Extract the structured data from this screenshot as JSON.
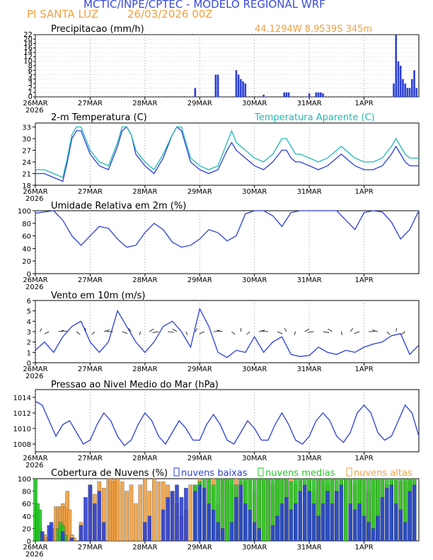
{
  "header": {
    "title": "MCTIC/INPE/CPTEC - MODELO REGIONAL WRF",
    "station": "PI SANTA LUZ",
    "run": "26/03/2026 00Z",
    "coords": "44.1294W 8.9539S 345m"
  },
  "colors": {
    "blue": "#2b3fd6",
    "cyan": "#22b8b8",
    "orange": "#f0a040",
    "green": "#22c922",
    "title_blue": "#3a4bd8"
  },
  "x_axis": {
    "ticks": [
      "26MAR",
      "27MAR",
      "28MAR",
      "29MAR",
      "30MAR",
      "31MAR",
      "1APR"
    ],
    "year": "2026",
    "n_hours": 168
  },
  "chart_data": [
    {
      "id": "precip",
      "type": "bar",
      "title": "Precipitacao (mm/h)",
      "ylim": [
        0,
        22
      ],
      "yticks": [
        "0",
        "1",
        "2",
        "3",
        "4",
        "5",
        "6",
        "8",
        "10",
        "12",
        "14",
        "16",
        "18",
        "20",
        "22"
      ],
      "x_hours": [
        70,
        79,
        80,
        88,
        89,
        90,
        91,
        92,
        100,
        109,
        110,
        111,
        120,
        123,
        124,
        125,
        126,
        157,
        158,
        159,
        160,
        161,
        162,
        163,
        164,
        165,
        166,
        167
      ],
      "values": [
        2,
        5,
        5,
        6,
        5,
        4,
        3.5,
        3,
        0.5,
        1,
        1,
        1,
        0.8,
        1,
        1,
        1,
        0.8,
        3,
        22,
        10,
        8,
        4,
        3,
        2,
        2,
        4,
        6,
        2
      ],
      "series_color": "blue"
    },
    {
      "id": "temp",
      "type": "line",
      "title": "2-m Temperatura (C)",
      "legend": "Temperatura Aparente (C)",
      "ylim": [
        18,
        34
      ],
      "yticks": [
        "18",
        "21",
        "24",
        "27",
        "30",
        "33"
      ],
      "series": [
        {
          "name": "2-m Temperatura (C)",
          "color": "blue",
          "x": [
            0,
            4,
            8,
            12,
            14,
            16,
            18,
            20,
            24,
            28,
            32,
            36,
            38,
            40,
            42,
            44,
            48,
            52,
            56,
            60,
            62,
            64,
            66,
            68,
            72,
            76,
            80,
            84,
            86,
            88,
            90,
            92,
            96,
            100,
            104,
            108,
            110,
            112,
            114,
            116,
            120,
            124,
            128,
            132,
            134,
            136,
            138,
            140,
            144,
            148,
            152,
            156,
            158,
            160,
            162,
            164,
            168
          ],
          "values": [
            21,
            21,
            20,
            19,
            24,
            30,
            32,
            32,
            26,
            23,
            22,
            28,
            32,
            33,
            31,
            26,
            23,
            21,
            25,
            31,
            33,
            32,
            28,
            24,
            22,
            21,
            22,
            27,
            29,
            27,
            26,
            25,
            23,
            22,
            24,
            27,
            27,
            25,
            24,
            24,
            23,
            22,
            23,
            25,
            26,
            25,
            24,
            23,
            22,
            22,
            23,
            26,
            28,
            26,
            24,
            23,
            23
          ]
        },
        {
          "name": "Temperatura Aparente (C)",
          "color": "cyan",
          "x": [
            0,
            4,
            8,
            12,
            14,
            16,
            18,
            20,
            24,
            28,
            32,
            36,
            38,
            40,
            42,
            44,
            48,
            52,
            56,
            60,
            62,
            64,
            66,
            68,
            72,
            76,
            80,
            84,
            86,
            88,
            90,
            92,
            96,
            100,
            104,
            108,
            110,
            112,
            114,
            116,
            120,
            124,
            128,
            132,
            134,
            136,
            138,
            140,
            144,
            148,
            152,
            156,
            158,
            160,
            162,
            164,
            168
          ],
          "values": [
            22,
            22,
            21,
            20,
            25,
            31,
            33,
            33,
            27,
            24,
            23,
            29,
            33,
            33,
            31,
            27,
            24,
            22,
            26,
            31,
            33,
            33,
            29,
            25,
            23,
            22,
            23,
            29,
            32,
            29,
            28,
            27,
            25,
            24,
            26,
            30,
            30,
            28,
            26,
            26,
            25,
            24,
            25,
            27,
            28,
            27,
            26,
            25,
            24,
            24,
            25,
            28,
            30,
            28,
            26,
            25,
            25
          ]
        }
      ]
    },
    {
      "id": "rh",
      "type": "line",
      "title": "Umidade Relativa em 2m (%)",
      "ylim": [
        0,
        100
      ],
      "yticks": [
        "0",
        "20",
        "40",
        "60",
        "80",
        "100"
      ],
      "series": [
        {
          "name": "Umidade Relativa em 2m (%)",
          "color": "blue",
          "x": [
            0,
            4,
            8,
            12,
            16,
            20,
            24,
            28,
            32,
            36,
            40,
            44,
            48,
            52,
            56,
            60,
            64,
            68,
            72,
            76,
            80,
            84,
            88,
            92,
            96,
            100,
            104,
            108,
            112,
            116,
            120,
            124,
            128,
            132,
            136,
            140,
            144,
            148,
            152,
            156,
            160,
            164,
            168
          ],
          "values": [
            96,
            98,
            100,
            85,
            60,
            45,
            60,
            75,
            72,
            55,
            42,
            45,
            65,
            80,
            70,
            50,
            42,
            45,
            55,
            70,
            65,
            52,
            60,
            95,
            100,
            100,
            92,
            75,
            97,
            100,
            100,
            100,
            100,
            100,
            85,
            70,
            97,
            100,
            98,
            82,
            55,
            70,
            100
          ]
        }
      ]
    },
    {
      "id": "wind",
      "type": "line",
      "title": "Vento em 10m (m/s)",
      "ylim": [
        0,
        6
      ],
      "yticks": [
        "0",
        "1",
        "2",
        "3",
        "4",
        "5",
        "6"
      ],
      "series": [
        {
          "name": "Vento em 10m (m/s)",
          "color": "blue",
          "x": [
            0,
            4,
            8,
            12,
            16,
            20,
            24,
            28,
            32,
            36,
            40,
            44,
            48,
            52,
            56,
            60,
            64,
            68,
            72,
            76,
            80,
            84,
            88,
            92,
            96,
            100,
            104,
            108,
            112,
            116,
            120,
            124,
            128,
            132,
            136,
            140,
            144,
            148,
            152,
            156,
            160,
            164,
            168
          ],
          "values": [
            1.2,
            2.0,
            1.0,
            2.5,
            3.5,
            4.0,
            2.0,
            1.0,
            2.0,
            5.0,
            3.5,
            2.0,
            1.0,
            2.0,
            3.5,
            4.0,
            3.0,
            1.5,
            5.2,
            3.5,
            1.0,
            0.5,
            1.2,
            1.0,
            2.5,
            1.0,
            2.0,
            2.5,
            0.8,
            0.6,
            0.7,
            1.5,
            1.0,
            0.8,
            1.2,
            1.0,
            1.5,
            1.8,
            2.0,
            2.6,
            2.8,
            0.8,
            1.7
          ]
        }
      ]
    },
    {
      "id": "pres",
      "type": "line",
      "title": "Pressao ao Nivel Medio do Mar (hPa)",
      "ylim": [
        1007,
        1015
      ],
      "yticks": [
        "1008",
        "1010",
        "1012",
        "1014"
      ],
      "series": [
        {
          "name": "Pressao ao Nivel Medio do Mar (hPa)",
          "color": "blue",
          "x": [
            0,
            3,
            6,
            9,
            12,
            15,
            18,
            21,
            24,
            27,
            30,
            33,
            36,
            39,
            42,
            45,
            48,
            51,
            54,
            57,
            60,
            63,
            66,
            69,
            72,
            75,
            78,
            81,
            84,
            87,
            90,
            93,
            96,
            99,
            102,
            105,
            108,
            111,
            114,
            117,
            120,
            123,
            126,
            129,
            132,
            135,
            138,
            141,
            144,
            147,
            150,
            153,
            156,
            159,
            162,
            165,
            168
          ],
          "values": [
            1013.5,
            1013,
            1011,
            1009,
            1010.5,
            1011,
            1009.5,
            1008,
            1008.5,
            1010.5,
            1012,
            1011,
            1009,
            1007.8,
            1008.5,
            1010.5,
            1012,
            1011,
            1009,
            1008,
            1009.5,
            1011,
            1010,
            1008.5,
            1008.5,
            1010.5,
            1011.8,
            1010.5,
            1008.5,
            1008,
            1009.5,
            1011,
            1010,
            1008.5,
            1008.5,
            1010.5,
            1012,
            1010.5,
            1008.5,
            1008,
            1009,
            1011,
            1012,
            1011,
            1009,
            1008.2,
            1009.5,
            1012,
            1013,
            1012,
            1009.5,
            1008.5,
            1009,
            1011,
            1013,
            1012,
            1009
          ]
        }
      ]
    },
    {
      "id": "cloud",
      "type": "bar",
      "title": "Cobertura de Nuvens (%)",
      "ylim": [
        0,
        100
      ],
      "yticks": [
        "0",
        "20",
        "40",
        "60",
        "80",
        "100"
      ],
      "legend": [
        "nuvens baixas",
        "nuvens medias",
        "nuvens altas"
      ],
      "series": [
        {
          "name": "nuvens altas",
          "color": "orange",
          "x": [
            2,
            3,
            4,
            5,
            8,
            9,
            10,
            11,
            12,
            13,
            14,
            15,
            16,
            17,
            20,
            24,
            26,
            28,
            30,
            32,
            33,
            34,
            35,
            36,
            38,
            40,
            42,
            44,
            46,
            48,
            50,
            52,
            54,
            56,
            58,
            60,
            62,
            64,
            66,
            68,
            70,
            72,
            74,
            76,
            78,
            80,
            82,
            84,
            86,
            88,
            90,
            92,
            94,
            96,
            98,
            100,
            102,
            104,
            106,
            108,
            110,
            112,
            114,
            116,
            118,
            120,
            122,
            124,
            126,
            128,
            130,
            132,
            134,
            136,
            138,
            140,
            142,
            144,
            146,
            148,
            150,
            152,
            154,
            156,
            158,
            160,
            162,
            164,
            166
          ],
          "values": [
            20,
            15,
            10,
            5,
            20,
            55,
            55,
            55,
            60,
            55,
            80,
            50,
            10,
            5,
            30,
            90,
            75,
            95,
            85,
            100,
            100,
            95,
            100,
            100,
            95,
            80,
            90,
            60,
            90,
            100,
            80,
            100,
            95,
            95,
            90,
            80,
            60,
            40,
            50,
            90,
            90,
            100,
            80,
            100,
            100,
            60,
            100,
            100,
            90,
            100,
            95,
            100,
            100,
            80,
            100,
            100,
            100,
            90,
            100,
            100,
            100,
            100,
            90,
            100,
            60,
            100,
            80,
            100,
            100,
            90,
            100,
            80,
            100,
            100,
            100,
            90,
            100,
            100,
            80,
            100,
            100,
            100,
            90,
            100,
            100,
            95,
            100,
            100,
            100
          ]
        },
        {
          "name": "nuvens medias",
          "color": "green",
          "x": [
            0,
            1,
            2,
            10,
            11,
            12,
            13,
            70,
            72,
            74,
            76,
            78,
            80,
            82,
            84,
            86,
            88,
            90,
            92,
            94,
            96,
            98,
            100,
            102,
            104,
            106,
            108,
            110,
            112,
            114,
            116,
            118,
            120,
            122,
            124,
            126,
            128,
            130,
            132,
            134,
            136,
            138,
            140,
            142,
            144,
            146,
            148,
            150,
            152,
            154,
            156,
            158,
            160,
            162,
            164,
            166
          ],
          "values": [
            100,
            60,
            50,
            20,
            30,
            25,
            10,
            90,
            95,
            100,
            100,
            90,
            100,
            100,
            100,
            100,
            90,
            100,
            100,
            100,
            100,
            100,
            100,
            100,
            100,
            100,
            100,
            100,
            95,
            100,
            100,
            100,
            100,
            100,
            100,
            100,
            100,
            100,
            100,
            100,
            100,
            100,
            100,
            100,
            100,
            100,
            100,
            100,
            100,
            100,
            100,
            100,
            100,
            100,
            100,
            100
          ]
        },
        {
          "name": "nuvens baixas",
          "color": "blue",
          "x": [
            3,
            6,
            7,
            12,
            16,
            20,
            22,
            24,
            26,
            28,
            30,
            48,
            50,
            56,
            58,
            60,
            62,
            64,
            66,
            70,
            72,
            74,
            76,
            78,
            80,
            82,
            86,
            88,
            90,
            92,
            94,
            96,
            98,
            104,
            106,
            108,
            110,
            112,
            114,
            116,
            118,
            120,
            122,
            124,
            126,
            128,
            130,
            132,
            134,
            138,
            140,
            142,
            144,
            146,
            148,
            150,
            152,
            154,
            156,
            158,
            160,
            162,
            164,
            166
          ],
          "values": [
            15,
            25,
            30,
            15,
            5,
            25,
            70,
            90,
            60,
            80,
            30,
            30,
            40,
            50,
            70,
            80,
            90,
            70,
            85,
            80,
            90,
            85,
            60,
            50,
            30,
            20,
            30,
            70,
            90,
            60,
            50,
            30,
            20,
            25,
            40,
            60,
            70,
            50,
            60,
            80,
            90,
            80,
            60,
            40,
            60,
            80,
            60,
            80,
            90,
            60,
            50,
            60,
            40,
            30,
            20,
            40,
            70,
            85,
            90,
            60,
            50,
            30,
            80,
            90
          ]
        }
      ]
    }
  ]
}
